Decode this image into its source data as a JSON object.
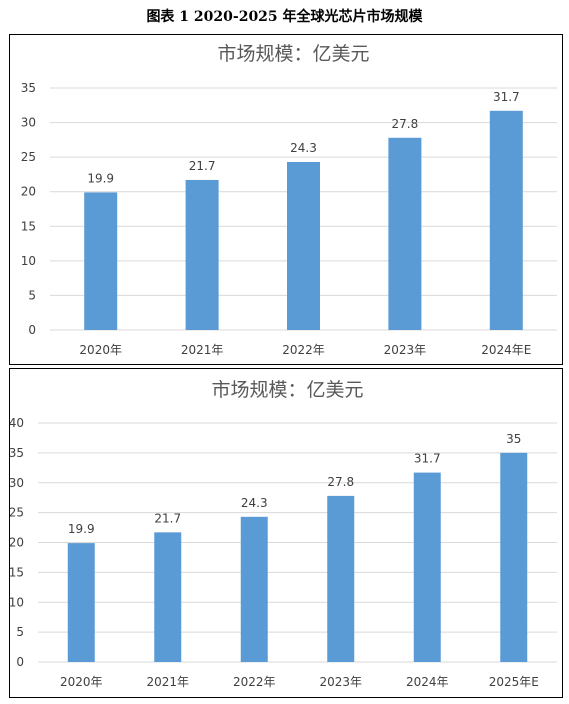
{
  "caption": "图表 1    2020-2025 年全球光芯片市场规模",
  "colors": {
    "bar": "#5b9bd5",
    "grid": "#d9d9d9",
    "text": "#404040",
    "title": "#595959"
  },
  "chart_data": [
    {
      "type": "bar",
      "title": "市场规模：亿美元",
      "categories": [
        "2020年",
        "2021年",
        "2022年",
        "2023年",
        "2024年E"
      ],
      "values": [
        19.9,
        21.7,
        24.3,
        27.8,
        31.7
      ],
      "data_labels": [
        "19.9",
        "21.7",
        "24.3",
        "27.8",
        "31.7"
      ],
      "yticks": [
        0,
        5,
        10,
        15,
        20,
        25,
        30,
        35
      ],
      "ylim": [
        0,
        35
      ],
      "grid": true,
      "legend": "none"
    },
    {
      "type": "bar",
      "title": "市场规模：亿美元",
      "categories": [
        "2020年",
        "2021年",
        "2022年",
        "2023年",
        "2024年",
        "2025年E"
      ],
      "values": [
        19.9,
        21.7,
        24.3,
        27.8,
        31.7,
        35
      ],
      "data_labels": [
        "19.9",
        "21.7",
        "24.3",
        "27.8",
        "31.7",
        "35"
      ],
      "yticks": [
        0,
        5,
        10,
        15,
        20,
        25,
        30,
        35,
        40
      ],
      "ylim": [
        0,
        40
      ],
      "grid": true,
      "legend": "none"
    }
  ]
}
